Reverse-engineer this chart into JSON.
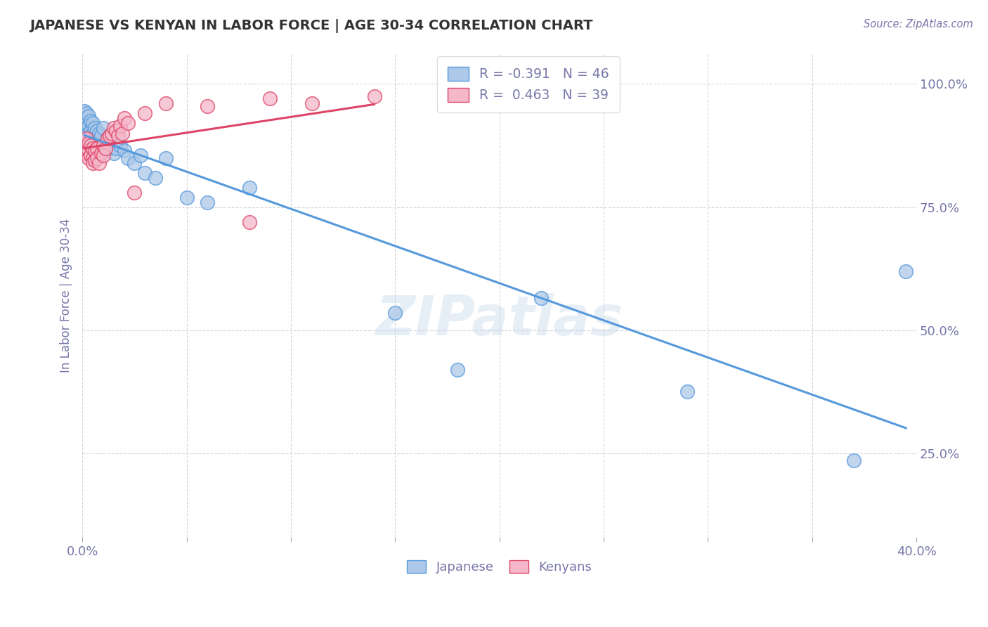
{
  "title": "JAPANESE VS KENYAN IN LABOR FORCE | AGE 30-34 CORRELATION CHART",
  "source_text": "Source: ZipAtlas.com",
  "ylabel": "In Labor Force | Age 30-34",
  "xlim": [
    0.0,
    0.4
  ],
  "ylim": [
    0.08,
    1.06
  ],
  "legend_R_blue": "-0.391",
  "legend_N_blue": "46",
  "legend_R_pink": "0.463",
  "legend_N_pink": "39",
  "blue_color": "#adc8e8",
  "pink_color": "#f5b8cb",
  "blue_line_color": "#5599dd",
  "pink_line_color": "#dd4466",
  "title_color": "#333333",
  "axis_color": "#7777aa",
  "watermark": "ZIPatlas",
  "background_color": "#ffffff",
  "japanese_x": [
    0.001,
    0.001,
    0.002,
    0.002,
    0.002,
    0.003,
    0.003,
    0.003,
    0.004,
    0.004,
    0.004,
    0.005,
    0.005,
    0.005,
    0.006,
    0.006,
    0.007,
    0.007,
    0.008,
    0.008,
    0.009,
    0.01,
    0.01,
    0.011,
    0.012,
    0.013,
    0.014,
    0.015,
    0.016,
    0.018,
    0.02,
    0.022,
    0.025,
    0.028,
    0.03,
    0.035,
    0.04,
    0.05,
    0.06,
    0.08,
    0.15,
    0.18,
    0.22,
    0.29,
    0.37,
    0.395
  ],
  "japanese_y": [
    0.945,
    0.93,
    0.94,
    0.92,
    0.91,
    0.935,
    0.915,
    0.9,
    0.925,
    0.905,
    0.895,
    0.92,
    0.9,
    0.885,
    0.91,
    0.89,
    0.905,
    0.885,
    0.9,
    0.88,
    0.895,
    0.91,
    0.875,
    0.865,
    0.88,
    0.87,
    0.885,
    0.86,
    0.87,
    0.875,
    0.865,
    0.85,
    0.84,
    0.855,
    0.82,
    0.81,
    0.85,
    0.77,
    0.76,
    0.79,
    0.535,
    0.42,
    0.565,
    0.375,
    0.235,
    0.62
  ],
  "kenyan_x": [
    0.001,
    0.001,
    0.002,
    0.002,
    0.003,
    0.003,
    0.003,
    0.004,
    0.004,
    0.005,
    0.005,
    0.005,
    0.006,
    0.006,
    0.007,
    0.007,
    0.008,
    0.009,
    0.01,
    0.01,
    0.011,
    0.012,
    0.013,
    0.014,
    0.015,
    0.016,
    0.017,
    0.018,
    0.019,
    0.02,
    0.022,
    0.025,
    0.03,
    0.04,
    0.06,
    0.08,
    0.09,
    0.11,
    0.14
  ],
  "kenyan_y": [
    0.88,
    0.87,
    0.89,
    0.86,
    0.88,
    0.865,
    0.85,
    0.875,
    0.855,
    0.87,
    0.85,
    0.84,
    0.865,
    0.845,
    0.87,
    0.85,
    0.84,
    0.86,
    0.875,
    0.855,
    0.87,
    0.89,
    0.895,
    0.9,
    0.91,
    0.905,
    0.895,
    0.915,
    0.9,
    0.93,
    0.92,
    0.78,
    0.94,
    0.96,
    0.955,
    0.72,
    0.97,
    0.96,
    0.975
  ]
}
